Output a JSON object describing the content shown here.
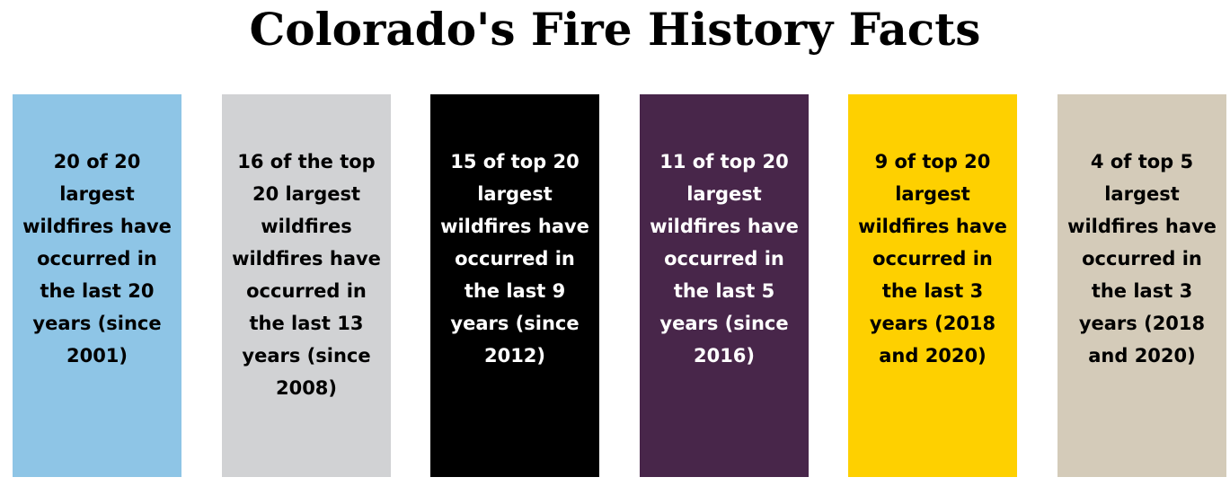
{
  "title": "Colorado's Fire History Facts",
  "cards": [
    {
      "text": "20 of 20\nlargest\nwildfires have\noccurred in\nthe last 20\nyears (since\n2001)",
      "bg_color": "#8EC5E6",
      "text_color": "#000000"
    },
    {
      "text": "16 of the top\n20  largest\nwildfires\nwildfires have\noccurred in\nthe last 13\nyears (since\n2008)",
      "bg_color": "#D1D2D4",
      "text_color": "#000000"
    },
    {
      "text": "15 of top 20\nlargest\nwildfires have\noccurred in\nthe last 9\nyears (since\n2012)",
      "bg_color": "#000000",
      "text_color": "#FFFFFF"
    },
    {
      "text": "11 of top 20\nlargest\nwildfires have\noccurred in\nthe last 5\nyears (since\n2016)",
      "bg_color": "#48264A",
      "text_color": "#FFFFFF"
    },
    {
      "text": "9 of top 20\nlargest\nwildfires have\noccurred in\nthe last 3\nyears (2018\nand 2020)",
      "bg_color": "#FED000",
      "text_color": "#000000"
    },
    {
      "text": "4 of top 5\nlargest\nwildfires have\noccurred in\nthe last 3\nyears (2018\nand 2020)",
      "bg_color": "#D4CBB9",
      "text_color": "#000000"
    }
  ]
}
